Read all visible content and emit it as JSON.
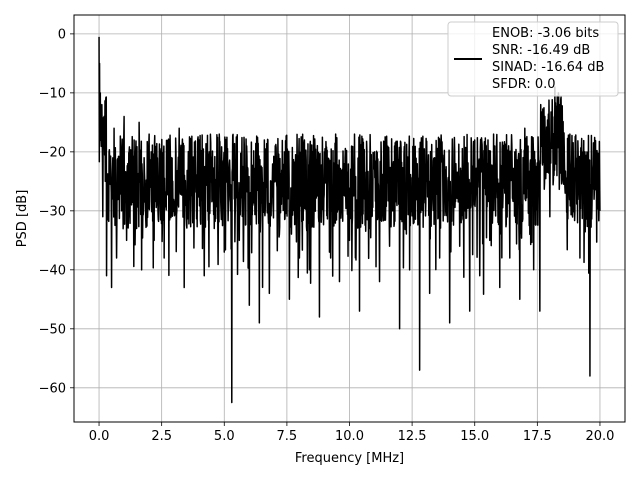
{
  "chart_data": {
    "type": "line",
    "title": "",
    "xlabel": "Frequency [MHz]",
    "ylabel": "PSD [dB]",
    "xlim": [
      -1.0,
      21.0
    ],
    "ylim": [
      -65.8,
      3.2
    ],
    "xticks": [
      0.0,
      2.5,
      5.0,
      7.5,
      10.0,
      12.5,
      15.0,
      17.5,
      20.0
    ],
    "xtick_labels": [
      "0.0",
      "2.5",
      "5.0",
      "7.5",
      "10.0",
      "12.5",
      "15.0",
      "17.5",
      "20.0"
    ],
    "yticks": [
      0,
      -10,
      -20,
      -30,
      -40,
      -50,
      -60
    ],
    "ytick_labels": [
      "0",
      "−10",
      "−20",
      "−30",
      "−40",
      "−50",
      "−60"
    ],
    "grid": true,
    "legend_position": "top-right",
    "legend_lines": [
      "ENOB: -3.06 bits",
      "SNR: -16.49 dB",
      "SINAD: -16.64 dB",
      "SFDR: 0.0"
    ],
    "series": [
      {
        "color": "#000000",
        "note": "noisy power spectral density trace; values sampled approximately",
        "x": [
          0.0,
          0.02,
          0.05,
          0.1,
          0.15,
          0.2,
          0.25,
          0.3,
          0.4,
          0.5,
          0.6,
          0.7,
          0.8,
          0.9,
          1.0,
          1.1,
          1.2,
          1.3,
          1.4,
          1.5,
          1.6,
          1.7,
          1.8,
          1.9,
          2.0,
          2.2,
          2.4,
          2.6,
          2.8,
          3.0,
          3.2,
          3.4,
          3.6,
          3.8,
          4.0,
          4.2,
          4.4,
          4.6,
          4.8,
          5.0,
          5.2,
          5.3,
          5.4,
          5.6,
          5.8,
          6.0,
          6.2,
          6.4,
          6.6,
          6.8,
          7.0,
          7.2,
          7.4,
          7.6,
          7.8,
          8.0,
          8.2,
          8.4,
          8.6,
          8.8,
          9.0,
          9.2,
          9.4,
          9.6,
          9.8,
          10.0,
          10.2,
          10.4,
          10.6,
          10.8,
          11.0,
          11.2,
          11.4,
          11.6,
          11.8,
          12.0,
          12.2,
          12.4,
          12.6,
          12.8,
          13.0,
          13.2,
          13.4,
          13.6,
          13.8,
          14.0,
          14.2,
          14.4,
          14.6,
          14.8,
          15.0,
          15.2,
          15.4,
          15.6,
          15.8,
          16.0,
          16.2,
          16.4,
          16.6,
          16.8,
          17.0,
          17.2,
          17.4,
          17.6,
          17.8,
          18.0,
          18.2,
          18.4,
          18.6,
          18.8,
          19.0,
          19.2,
          19.4,
          19.6,
          19.8,
          20.0
        ],
        "y": [
          -0.5,
          -5,
          -10,
          -18,
          -31,
          -14,
          -25,
          -41,
          -20,
          -43,
          -16,
          -38,
          -22,
          -30,
          -14,
          -35,
          -20,
          -29,
          -18,
          -33,
          -15,
          -40,
          -21,
          -27,
          -17,
          -35,
          -22,
          -38,
          -19,
          -30,
          -16,
          -43,
          -24,
          -29,
          -18,
          -41,
          -20,
          -33,
          -17,
          -37,
          -22,
          -62.5,
          -28,
          -35,
          -19,
          -46,
          -23,
          -49,
          -18,
          -44,
          -24,
          -34,
          -20,
          -45,
          -22,
          -38,
          -18,
          -40,
          -25,
          -48,
          -20,
          -37,
          -27,
          -42,
          -22,
          -35,
          -17,
          -47,
          -28,
          -33,
          -20,
          -42,
          -24,
          -36,
          -19,
          -50,
          -26,
          -40,
          -22,
          -57,
          -25,
          -44,
          -21,
          -38,
          -27,
          -49,
          -20,
          -36,
          -25,
          -47,
          -18,
          -41,
          -26,
          -35,
          -19,
          -43,
          -27,
          -38,
          -20,
          -45,
          -16,
          -34,
          -27,
          -47,
          -14,
          -31,
          -9,
          -12,
          -26,
          -17,
          -30,
          -38,
          -20,
          -58,
          -19,
          -30
        ]
      }
    ]
  }
}
